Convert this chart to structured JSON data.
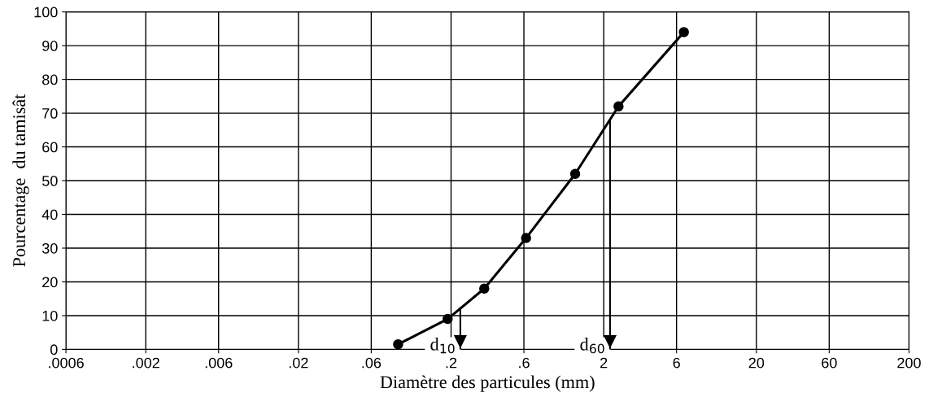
{
  "chart_data": {
    "type": "line",
    "xlabel": "Diamètre des particules (mm)",
    "ylabel": "Pourcentage  du tamisât",
    "x": [
      0.09,
      0.19,
      0.33,
      0.62,
      1.3,
      2.5,
      6.7
    ],
    "series": [
      {
        "color": "#000000",
        "values": [
          1.5,
          9,
          18,
          33,
          52,
          72,
          94
        ]
      }
    ],
    "log": "x",
    "xlim": [
      0.0006,
      200
    ],
    "xticks": [
      {
        "value": 0.0006,
        "label": ".0006"
      },
      {
        "value": 0.002,
        "label": ".002"
      },
      {
        "value": 0.006,
        "label": ".006"
      },
      {
        "value": 0.02,
        "label": ".02"
      },
      {
        "value": 0.06,
        "label": ".06"
      },
      {
        "value": 0.2,
        "label": ".2"
      },
      {
        "value": 0.6,
        "label": ".6"
      },
      2,
      6,
      20,
      60,
      200
    ],
    "ylim": [
      0,
      100
    ],
    "yticks": [
      0,
      10,
      20,
      30,
      40,
      50,
      60,
      70,
      80,
      90,
      100
    ],
    "grid": true,
    "marker": "circle",
    "line_style": "solid",
    "ref_lines": [
      {
        "axis": "x",
        "value": 0.23,
        "label": "d$_{10}$",
        "color": "#000000"
      },
      {
        "axis": "x",
        "value": 2.2,
        "label": "d$_{60}$",
        "color": "#000000"
      }
    ]
  }
}
